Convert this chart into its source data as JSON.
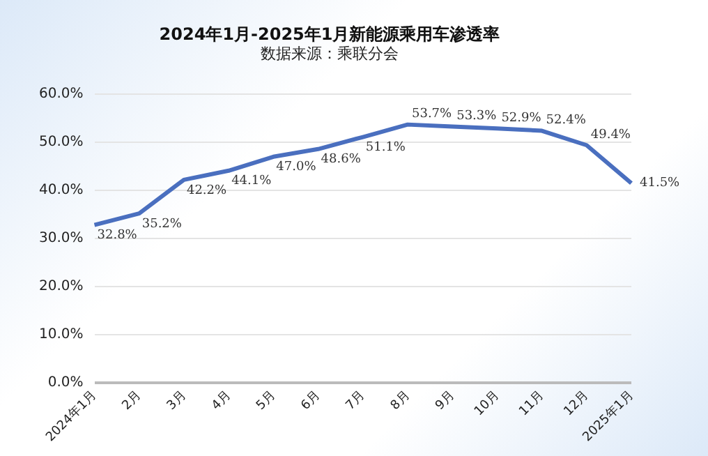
{
  "chart_data": {
    "type": "line",
    "title": "2024年1月-2025年1月新能源乘用车渗透率",
    "subtitle": "数据来源：乘联分会",
    "categories": [
      "2024年1月",
      "2月",
      "3月",
      "4月",
      "5月",
      "6月",
      "7月",
      "8月",
      "9月",
      "10月",
      "11月",
      "12月",
      "2025年1月"
    ],
    "series": [
      {
        "color": "#4a6fbf",
        "values": [
          32.8,
          35.2,
          42.2,
          44.1,
          47.0,
          48.6,
          51.1,
          53.7,
          53.3,
          52.9,
          52.4,
          49.4,
          41.5
        ],
        "value_labels": [
          "32.8%",
          "35.2%",
          "42.2%",
          "44.1%",
          "47.0%",
          "48.6%",
          "51.1%",
          "53.7%",
          "53.3%",
          "52.9%",
          "52.4%",
          "49.4%",
          "41.5%"
        ]
      }
    ],
    "ylim": [
      0,
      60
    ],
    "yticks": [
      {
        "value": 0,
        "label": "0.0%"
      },
      {
        "value": 10,
        "label": "10.0%"
      },
      {
        "value": 20,
        "label": "20.0%"
      },
      {
        "value": 30,
        "label": "30.0%"
      },
      {
        "value": 40,
        "label": "40.0%"
      },
      {
        "value": 50,
        "label": "50.0%"
      },
      {
        "value": 60,
        "label": "60.0%"
      }
    ],
    "grid": "y",
    "legend": false,
    "marker": "none",
    "line_style": "solid"
  }
}
